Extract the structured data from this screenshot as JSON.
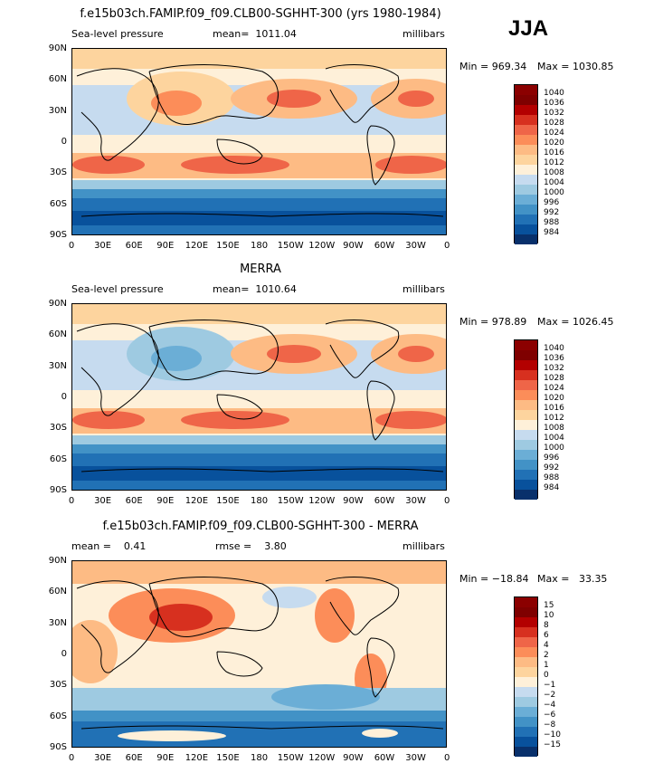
{
  "season": "JJA",
  "panels": [
    {
      "title": "f.e15b03ch.FAMIP.f09_f09.CLB00-SGHHT-300 (yrs 1980-1984)",
      "left_label": "Sea-level pressure",
      "center_label": "mean=  1011.04",
      "right_label": "millibars",
      "min_label": "Min = 969.34",
      "max_label": "Max = 1030.85",
      "colorbar": [
        "1040",
        "1036",
        "1032",
        "1028",
        "1024",
        "1020",
        "1016",
        "1012",
        "1008",
        "1004",
        "1000",
        "996",
        "992",
        "988",
        "984"
      ]
    },
    {
      "title": "MERRA",
      "left_label": "Sea-level pressure",
      "center_label": "mean=  1010.64",
      "right_label": "millibars",
      "min_label": "Min = 978.89",
      "max_label": "Max = 1026.45",
      "colorbar": [
        "1040",
        "1036",
        "1032",
        "1028",
        "1024",
        "1020",
        "1016",
        "1012",
        "1008",
        "1004",
        "1000",
        "996",
        "992",
        "988",
        "984"
      ]
    },
    {
      "title": "f.e15b03ch.FAMIP.f09_f09.CLB00-SGHHT-300 - MERRA",
      "left_label": "mean =    0.41",
      "center_label": "rmse =    3.80",
      "right_label": "millibars",
      "min_label": "Min = −18.84",
      "max_label": "Max =   33.35",
      "colorbar": [
        "15",
        "10",
        "8",
        "6",
        "4",
        "2",
        "1",
        "0",
        "−1",
        "−2",
        "−4",
        "−6",
        "−8",
        "−10",
        "−15"
      ]
    }
  ],
  "lat_labels": [
    "90N",
    "60N",
    "30N",
    "0",
    "30S",
    "60S",
    "90S"
  ],
  "lon_labels": [
    "0",
    "30E",
    "60E",
    "90E",
    "120E",
    "150E",
    "180",
    "150W",
    "120W",
    "90W",
    "60W",
    "30W",
    "0"
  ],
  "colors": {
    "scale": [
      "#7f0000",
      "#b30000",
      "#d7301f",
      "#ef6548",
      "#fc8d59",
      "#fdbb84",
      "#fdd49e",
      "#fef0d9",
      "#c6dbef",
      "#9ecae1",
      "#6baed6",
      "#4292c6",
      "#2171b5",
      "#08519c",
      "#08306b"
    ]
  }
}
